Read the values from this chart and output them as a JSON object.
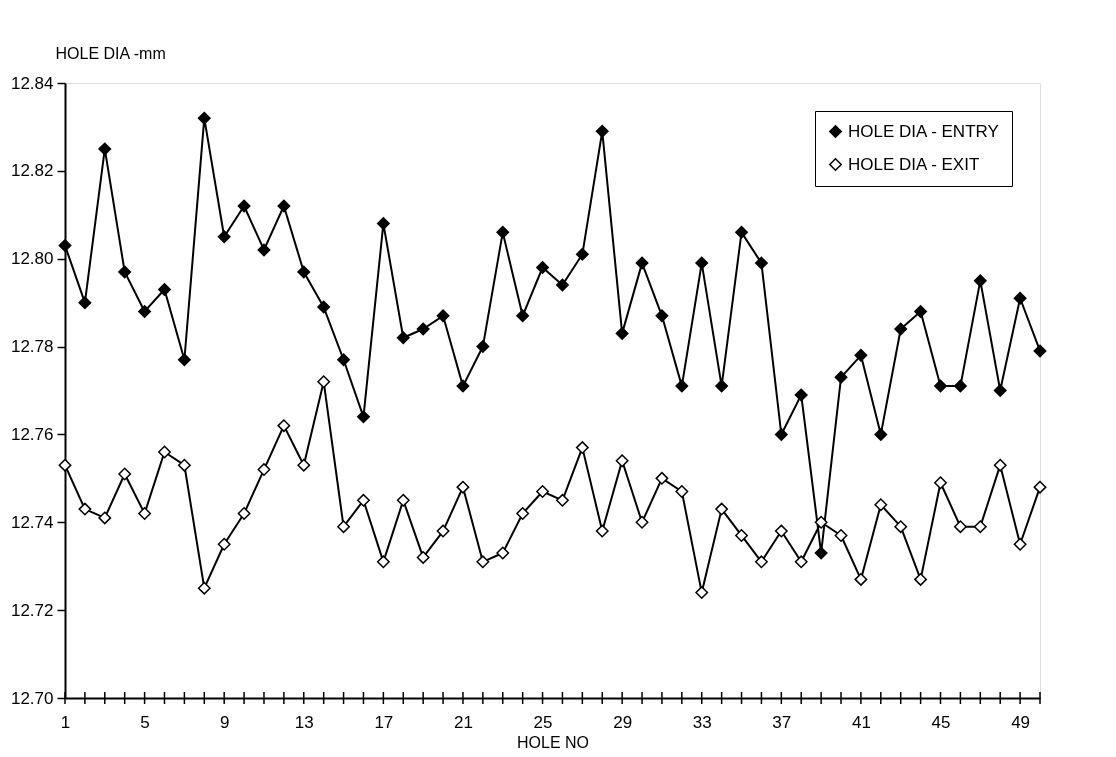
{
  "chart_data": {
    "type": "line",
    "ylabel": "HOLE DIA -mm",
    "xlabel": "HOLE NO",
    "x": [
      1,
      2,
      3,
      4,
      5,
      6,
      7,
      8,
      9,
      10,
      11,
      12,
      13,
      14,
      15,
      16,
      17,
      18,
      19,
      20,
      21,
      22,
      23,
      24,
      25,
      26,
      27,
      28,
      29,
      30,
      31,
      32,
      33,
      34,
      35,
      36,
      37,
      38,
      39,
      40,
      41,
      42,
      43,
      44,
      45,
      46,
      47,
      48,
      49,
      50
    ],
    "series": [
      {
        "name": "HOLE DIA - ENTRY",
        "color": "#000000",
        "values": [
          12.803,
          12.79,
          12.825,
          12.797,
          12.788,
          12.793,
          12.777,
          12.832,
          12.805,
          12.812,
          12.802,
          12.812,
          12.797,
          12.789,
          12.777,
          12.764,
          12.808,
          12.782,
          12.784,
          12.787,
          12.771,
          12.78,
          12.806,
          12.787,
          12.798,
          12.794,
          12.801,
          12.829,
          12.783,
          12.799,
          12.787,
          12.771,
          12.799,
          12.771,
          12.806,
          12.799,
          12.76,
          12.769,
          12.733,
          12.773,
          12.778,
          12.76,
          12.784,
          12.788,
          12.771,
          12.771,
          12.795,
          12.77,
          12.791,
          12.779
        ]
      },
      {
        "name": "HOLE DIA - EXIT",
        "color": "#000000",
        "values": [
          12.753,
          12.743,
          12.741,
          12.751,
          12.742,
          12.756,
          12.753,
          12.725,
          12.735,
          12.742,
          12.752,
          12.762,
          12.753,
          12.772,
          12.739,
          12.745,
          12.731,
          12.745,
          12.732,
          12.738,
          12.748,
          12.731,
          12.733,
          12.742,
          12.747,
          12.745,
          12.757,
          12.738,
          12.754,
          12.74,
          12.75,
          12.747,
          12.724,
          12.743,
          12.737,
          12.731,
          12.738,
          12.731,
          12.74,
          12.737,
          12.727,
          12.744,
          12.739,
          12.727,
          12.749,
          12.739,
          12.739,
          12.753,
          12.735,
          12.748
        ]
      }
    ],
    "xlim": [
      1,
      50
    ],
    "xticks": [
      1,
      {
        "value": 2,
        "label": null
      },
      {
        "value": 3,
        "label": null
      },
      {
        "value": 4,
        "label": null
      },
      5,
      {
        "value": 6,
        "label": null
      },
      {
        "value": 7,
        "label": null
      },
      {
        "value": 8,
        "label": null
      },
      9,
      {
        "value": 10,
        "label": null
      },
      {
        "value": 11,
        "label": null
      },
      {
        "value": 12,
        "label": null
      },
      13,
      {
        "value": 14,
        "label": null
      },
      {
        "value": 15,
        "label": null
      },
      {
        "value": 16,
        "label": null
      },
      17,
      {
        "value": 18,
        "label": null
      },
      {
        "value": 19,
        "label": null
      },
      {
        "value": 20,
        "label": null
      },
      21,
      {
        "value": 22,
        "label": null
      },
      {
        "value": 23,
        "label": null
      },
      {
        "value": 24,
        "label": null
      },
      25,
      {
        "value": 26,
        "label": null
      },
      {
        "value": 27,
        "label": null
      },
      {
        "value": 28,
        "label": null
      },
      29,
      {
        "value": 30,
        "label": null
      },
      {
        "value": 31,
        "label": null
      },
      {
        "value": 32,
        "label": null
      },
      33,
      {
        "value": 34,
        "label": null
      },
      {
        "value": 35,
        "label": null
      },
      {
        "value": 36,
        "label": null
      },
      37,
      {
        "value": 38,
        "label": null
      },
      {
        "value": 39,
        "label": null
      },
      {
        "value": 40,
        "label": null
      },
      41,
      {
        "value": 42,
        "label": null
      },
      {
        "value": 43,
        "label": null
      },
      {
        "value": 44,
        "label": null
      },
      45,
      {
        "value": 46,
        "label": null
      },
      {
        "value": 47,
        "label": null
      },
      {
        "value": 48,
        "label": null
      },
      49,
      {
        "value": 50,
        "label": null
      }
    ],
    "ylim": [
      12.7,
      12.84
    ],
    "yticks": [
      {
        "value": 12.7,
        "label": "12.70"
      },
      12.72,
      12.74,
      12.76,
      12.78,
      {
        "value": 12.8,
        "label": "12.80"
      },
      12.82,
      12.84
    ],
    "grid": false,
    "legend": "top right",
    "marker": "diamond",
    "line_style": "solid"
  }
}
